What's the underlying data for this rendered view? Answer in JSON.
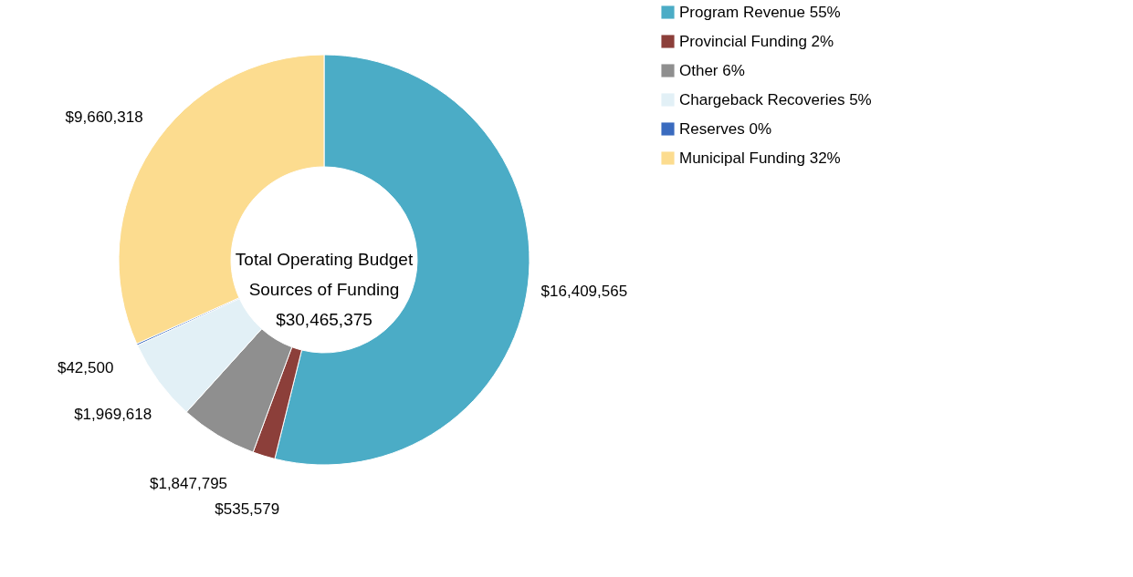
{
  "chart_data": {
    "type": "donut",
    "title": "Total Operating Budget Sources of Funding",
    "subtitle": "$30,465,375",
    "categories": [
      "Program Revenue 55%",
      "Provincial Funding 2%",
      "Other  6%",
      "Chargeback Recoveries 5%",
      "Reserves 0%",
      "Municipal Funding 32%"
    ],
    "values": [
      16409565,
      535579,
      1847795,
      1969618,
      42500,
      9660318
    ],
    "colors": [
      "#4bacc6",
      "#8c3f3a",
      "#8f8f8f",
      "#e2f0f6",
      "#3a6bbf",
      "#fcdc8f"
    ],
    "value_labels": [
      "$16,409,565",
      "$535,579",
      "$1,847,795",
      "$1,969,618",
      "$42,500",
      "$9,660,318"
    ],
    "legend": "right"
  }
}
